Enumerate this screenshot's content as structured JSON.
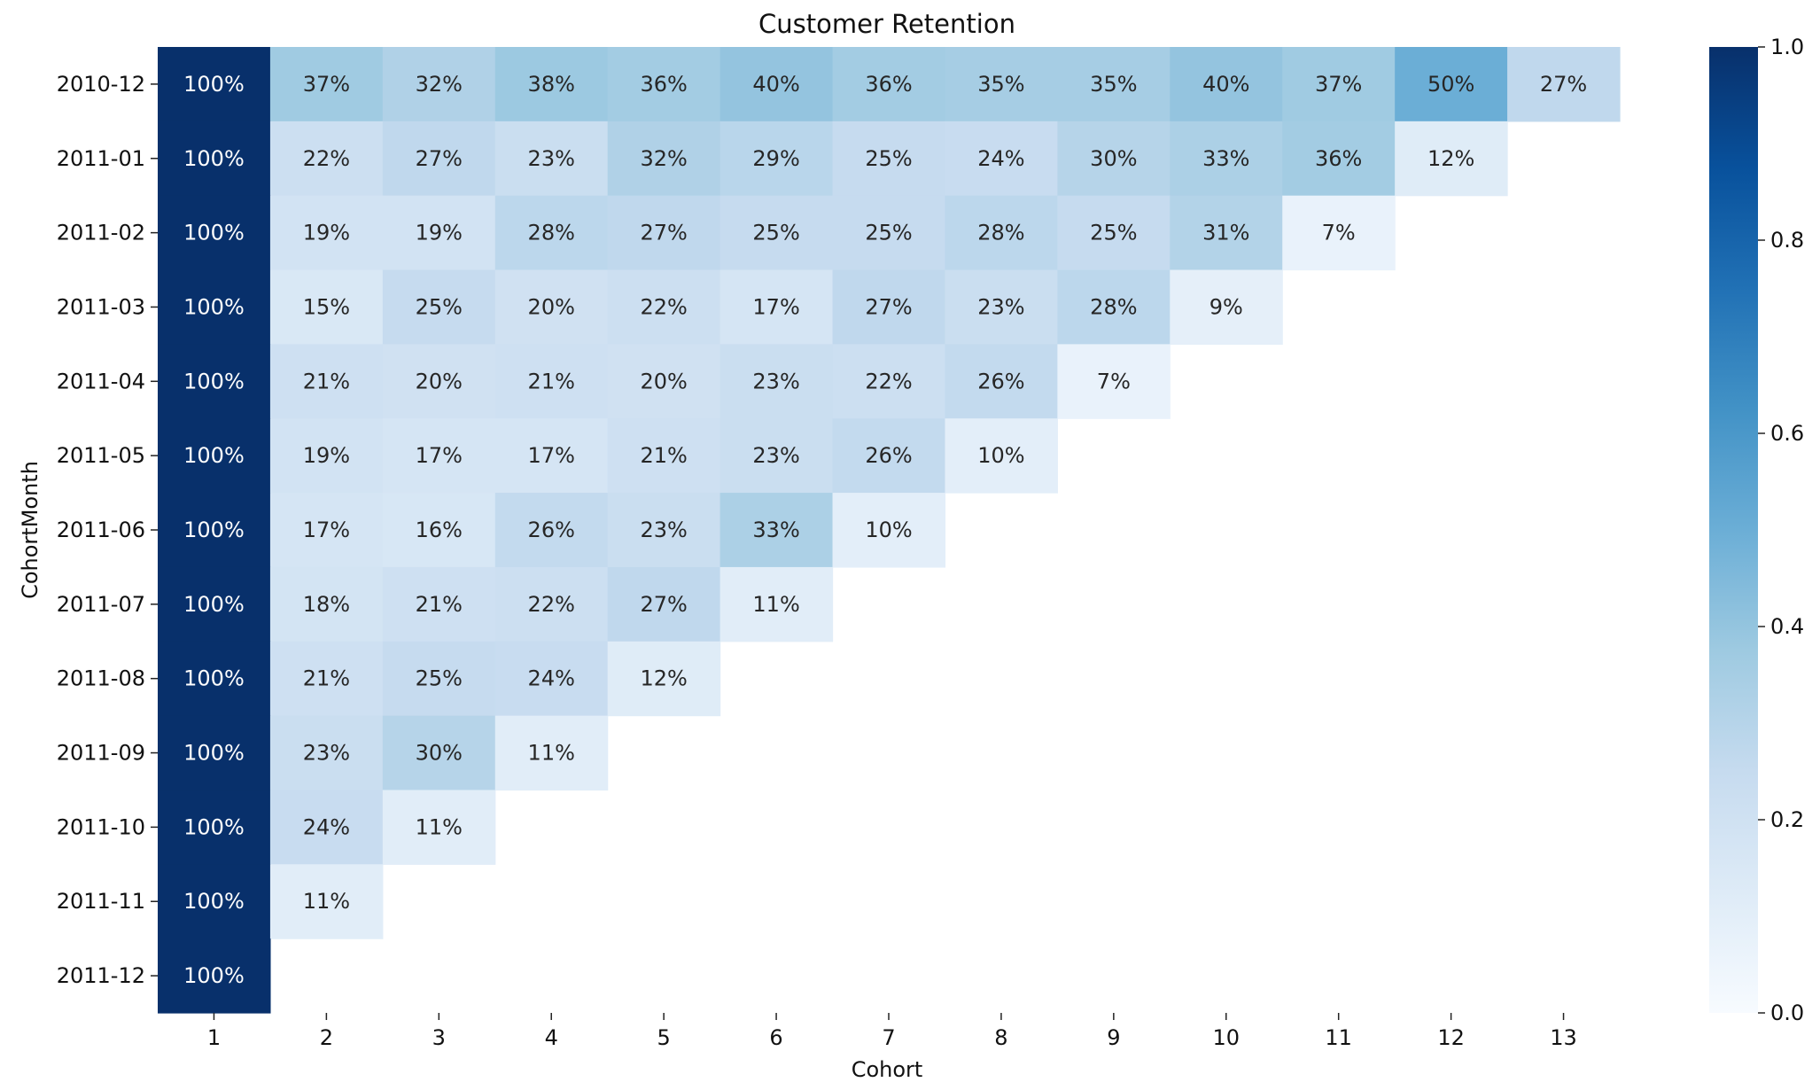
{
  "chart_data": {
    "type": "heatmap",
    "title": "Customer Retention",
    "xlabel": "Cohort",
    "ylabel": "CohortMonth",
    "x_categories": [
      "1",
      "2",
      "3",
      "4",
      "5",
      "6",
      "7",
      "8",
      "9",
      "10",
      "11",
      "12",
      "13"
    ],
    "y_categories": [
      "2010-12",
      "2011-01",
      "2011-02",
      "2011-03",
      "2011-04",
      "2011-05",
      "2011-06",
      "2011-07",
      "2011-08",
      "2011-09",
      "2011-10",
      "2011-11",
      "2011-12"
    ],
    "values": [
      [
        1.0,
        0.37,
        0.32,
        0.38,
        0.36,
        0.4,
        0.36,
        0.35,
        0.35,
        0.4,
        0.37,
        0.5,
        0.27
      ],
      [
        1.0,
        0.22,
        0.27,
        0.23,
        0.32,
        0.29,
        0.25,
        0.24,
        0.3,
        0.33,
        0.36,
        0.12,
        null
      ],
      [
        1.0,
        0.19,
        0.19,
        0.28,
        0.27,
        0.25,
        0.25,
        0.28,
        0.25,
        0.31,
        0.07,
        null,
        null
      ],
      [
        1.0,
        0.15,
        0.25,
        0.2,
        0.22,
        0.17,
        0.27,
        0.23,
        0.28,
        0.09,
        null,
        null,
        null
      ],
      [
        1.0,
        0.21,
        0.2,
        0.21,
        0.2,
        0.23,
        0.22,
        0.26,
        0.07,
        null,
        null,
        null,
        null
      ],
      [
        1.0,
        0.19,
        0.17,
        0.17,
        0.21,
        0.23,
        0.26,
        0.1,
        null,
        null,
        null,
        null,
        null
      ],
      [
        1.0,
        0.17,
        0.16,
        0.26,
        0.23,
        0.33,
        0.1,
        null,
        null,
        null,
        null,
        null,
        null
      ],
      [
        1.0,
        0.18,
        0.21,
        0.22,
        0.27,
        0.11,
        null,
        null,
        null,
        null,
        null,
        null,
        null
      ],
      [
        1.0,
        0.21,
        0.25,
        0.24,
        0.12,
        null,
        null,
        null,
        null,
        null,
        null,
        null,
        null
      ],
      [
        1.0,
        0.23,
        0.3,
        0.11,
        null,
        null,
        null,
        null,
        null,
        null,
        null,
        null,
        null
      ],
      [
        1.0,
        0.24,
        0.11,
        null,
        null,
        null,
        null,
        null,
        null,
        null,
        null,
        null,
        null
      ],
      [
        1.0,
        0.11,
        null,
        null,
        null,
        null,
        null,
        null,
        null,
        null,
        null,
        null,
        null
      ],
      [
        1.0,
        null,
        null,
        null,
        null,
        null,
        null,
        null,
        null,
        null,
        null,
        null,
        null
      ]
    ],
    "annotation_format": "percent",
    "colormap": "Blues",
    "vmin": 0.0,
    "vmax": 1.0,
    "colorbar_ticks": [
      "0.0",
      "0.2",
      "0.4",
      "0.6",
      "0.8",
      "1.0"
    ],
    "colorbar_tick_values": [
      0.0,
      0.2,
      0.4,
      0.6,
      0.8,
      1.0
    ]
  }
}
